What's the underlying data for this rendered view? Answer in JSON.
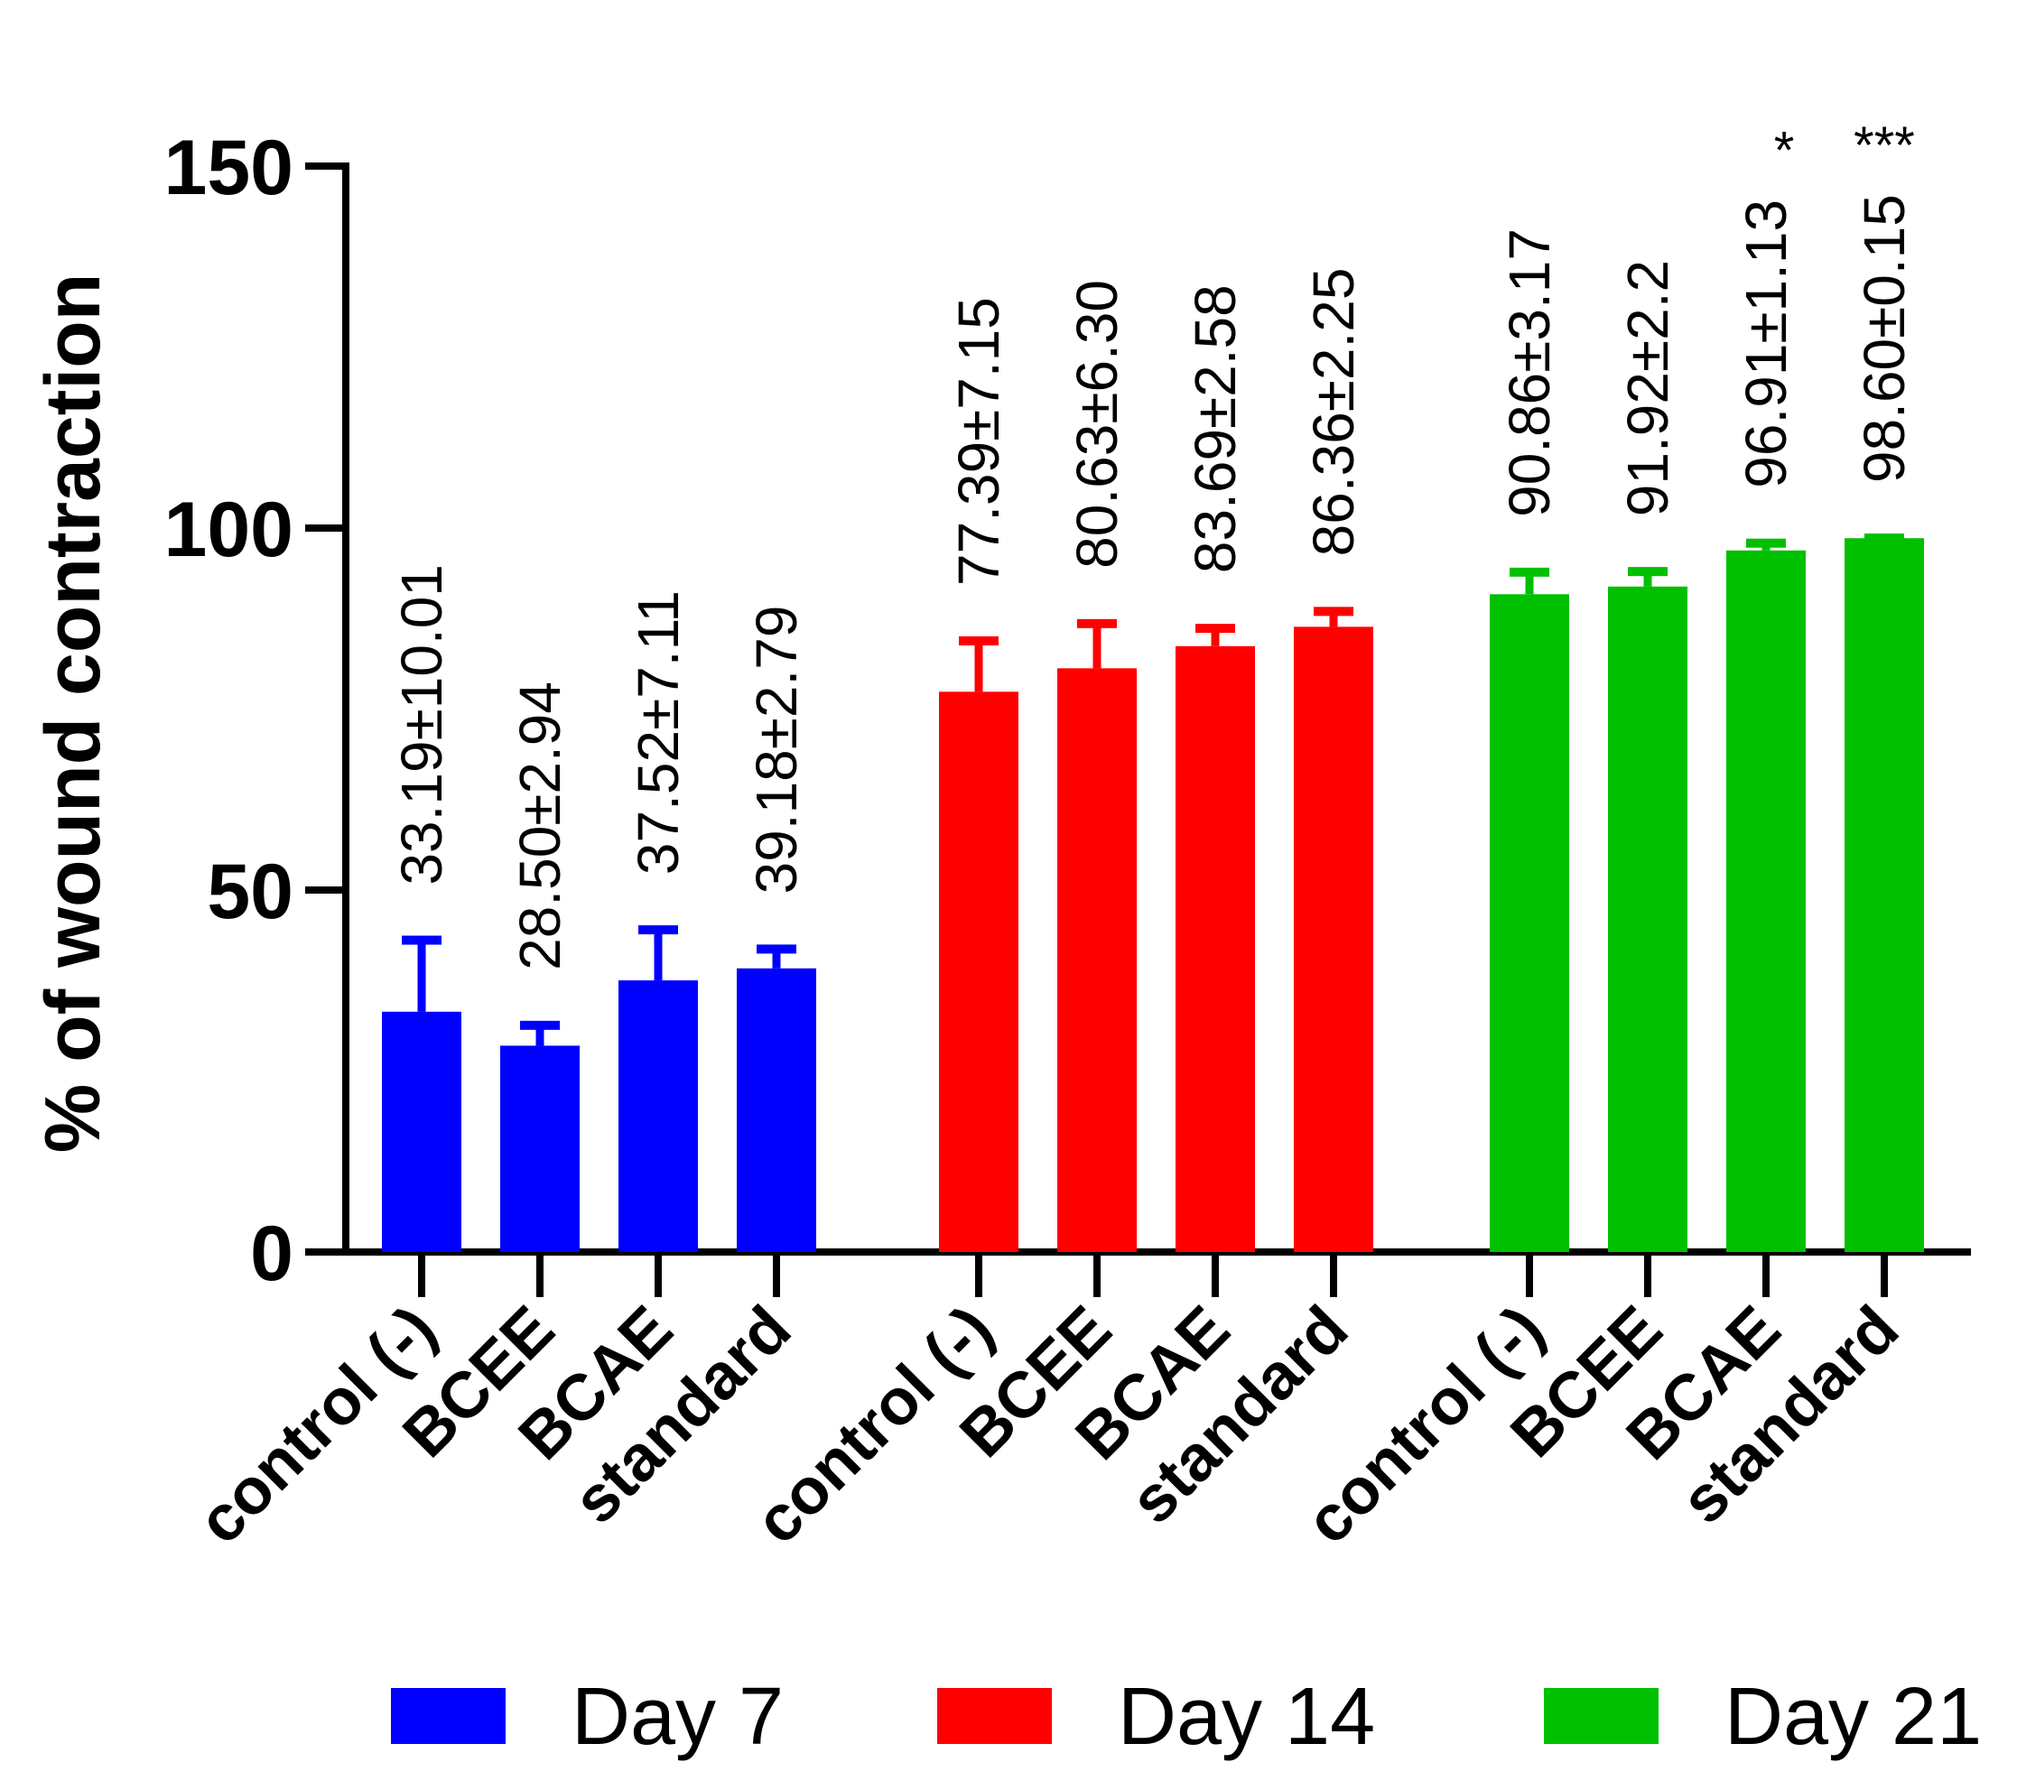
{
  "chart_data": {
    "type": "bar",
    "ylabel": "% of wound contraction",
    "xlabel": "",
    "ylim": [
      0,
      150
    ],
    "yticks": [
      0,
      50,
      100,
      150
    ],
    "categories": [
      "control (-)",
      "BCEE",
      "BCAE",
      "standard"
    ],
    "series": [
      {
        "name": "Day 7",
        "color": "#0000ff",
        "values": [
          33.19,
          28.5,
          37.52,
          39.18
        ],
        "errors": [
          10.01,
          2.94,
          7.11,
          2.79
        ],
        "labels": [
          "33.19±10.01",
          "28.50±2.94",
          "37.52±7.11",
          "39.18±2.79"
        ],
        "significance": [
          "",
          "",
          "",
          ""
        ]
      },
      {
        "name": "Day 14",
        "color": "#ff0000",
        "values": [
          77.39,
          80.63,
          83.69,
          86.36
        ],
        "errors": [
          7.15,
          6.3,
          2.58,
          2.25
        ],
        "labels": [
          "77.39±7.15",
          "80.63±6.30",
          "83.69±2.58",
          "86.36±2.25"
        ],
        "significance": [
          "",
          "",
          "",
          ""
        ]
      },
      {
        "name": "Day 21",
        "color": "#00c000",
        "values": [
          90.86,
          91.92,
          96.91,
          98.6
        ],
        "errors": [
          3.17,
          2.2,
          1.13,
          0.15
        ],
        "labels": [
          "90.86±3.17",
          "91.92±2.2",
          "96.91±1.13",
          "98.60±0.15"
        ],
        "significance": [
          "",
          "",
          "*",
          "***"
        ]
      }
    ],
    "legend": [
      "Day 7",
      "Day 14",
      "Day 21"
    ]
  }
}
